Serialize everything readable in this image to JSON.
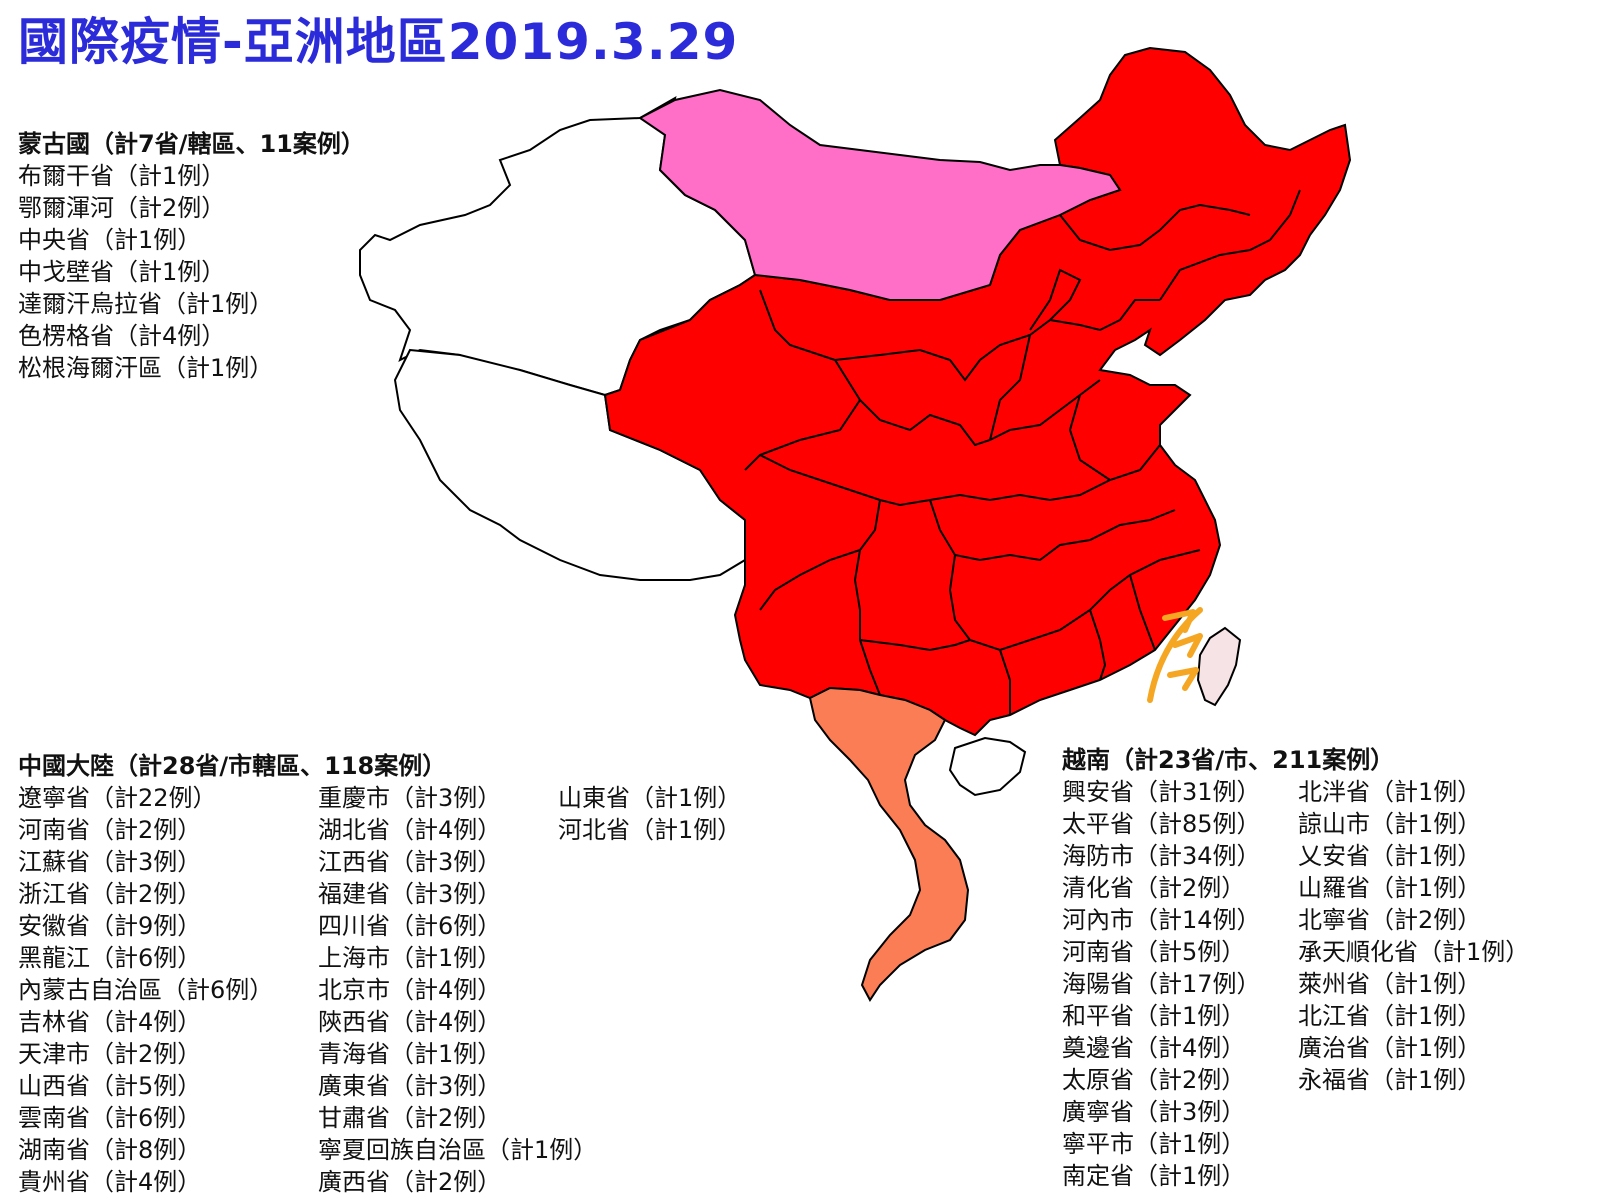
{
  "title": "國際疫情-亞洲地區2019.3.29",
  "colors": {
    "title": "#2b2bd9",
    "china_fill": "#ff0000",
    "mongolia_fill": "#ff6ec7",
    "vietnam_fill": "#fa7d55",
    "taiwan_fill": "#f6e3e6",
    "unaffected_fill": "#ffffff",
    "arrow": "#f5a623"
  },
  "mongolia": {
    "header": "蒙古國（計7省/轄區、11案例）",
    "items": [
      "布爾干省（計1例）",
      "鄂爾渾河（計2例）",
      "中央省（計1例）",
      "中戈壁省（計1例）",
      "達爾汗烏拉省（計1例）",
      "色楞格省（計4例）",
      "松根海爾汗區（計1例）"
    ]
  },
  "china": {
    "header": "中國大陸（計28省/市轄區、118案例）",
    "col1": [
      "遼寧省（計22例）",
      "河南省（計2例）",
      "江蘇省（計3例）",
      "浙江省（計2例）",
      "安徽省（計9例）",
      "黑龍江（計6例）",
      "內蒙古自治區（計6例）",
      "吉林省（計4例）",
      "天津市（計2例）",
      "山西省（計5例）",
      "雲南省（計6例）",
      "湖南省（計8例）",
      "貴州省（計4例）"
    ],
    "col2": [
      "重慶市（計3例）",
      "湖北省（計4例）",
      "江西省（計3例）",
      "福建省（計3例）",
      "四川省（計6例）",
      "上海市（計1例）",
      "北京市（計4例）",
      "陝西省（計4例）",
      "青海省（計1例）",
      "廣東省（計3例）",
      "甘肅省（計2例）",
      "寧夏回族自治區（計1例）",
      "廣西省（計2例）"
    ],
    "col3": [
      "山東省（計1例）",
      "河北省（計1例）"
    ]
  },
  "vietnam": {
    "header": "越南（計23省/市、211案例）",
    "col1": [
      "興安省（計31例）",
      "太平省（計85例）",
      "海防市（計34例）",
      "清化省（計2例）",
      "河內市（計14例）",
      "河南省（計5例）",
      "海陽省（計17例）",
      "和平省（計1例）",
      "奠邊省（計4例）",
      "太原省（計2例）",
      "廣寧省（計3例）",
      "寧平市（計1例）",
      "南定省（計1例）"
    ],
    "col2": [
      "北泮省（計1例）",
      "諒山市（計1例）",
      "乂安省（計1例）",
      "山羅省（計1例）",
      "北寧省（計2例）",
      "承天順化省（計1例）",
      "萊州省（計1例）",
      "北江省（計1例）",
      "廣治省（計1例）",
      "永福省（計1例）"
    ]
  }
}
